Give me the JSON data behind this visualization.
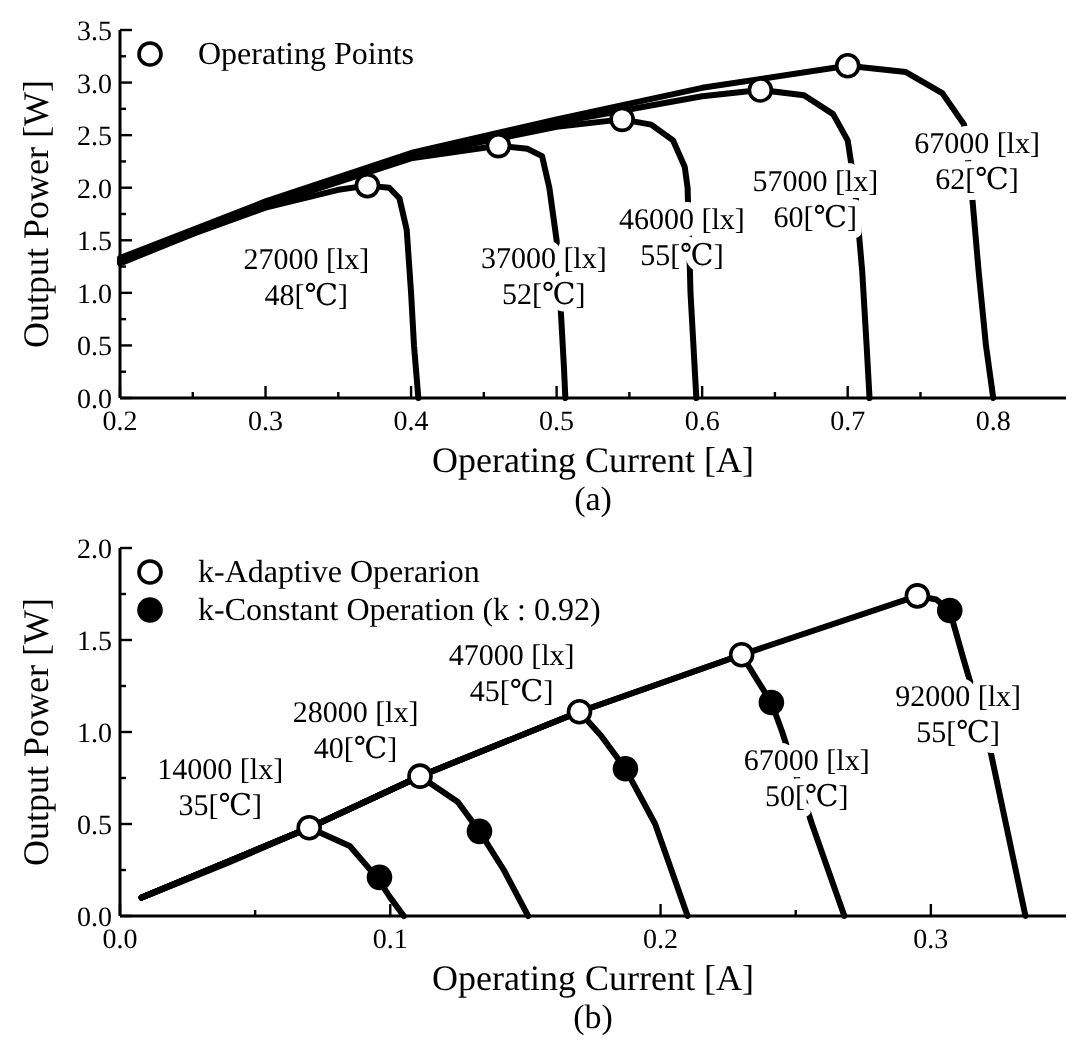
{
  "chart_data": [
    {
      "type": "line",
      "xlabel": "Operating Current [A]",
      "ylabel": "Output Power [W]",
      "xlim": [
        0.2,
        0.85
      ],
      "ylim": [
        0,
        3.5
      ],
      "xticks": [
        {
          "value": 0.2,
          "label": "0.2"
        },
        {
          "value": 0.25,
          "label": null
        },
        {
          "value": 0.3,
          "label": "0.3"
        },
        {
          "value": 0.35,
          "label": null
        },
        {
          "value": 0.4,
          "label": "0.4"
        },
        {
          "value": 0.45,
          "label": null
        },
        {
          "value": 0.5,
          "label": "0.5"
        },
        {
          "value": 0.55,
          "label": null
        },
        {
          "value": 0.6,
          "label": "0.6"
        },
        {
          "value": 0.65,
          "label": null
        },
        {
          "value": 0.7,
          "label": "0.7"
        },
        {
          "value": 0.75,
          "label": null
        },
        {
          "value": 0.8,
          "label": "0.8"
        }
      ],
      "yticks": [
        {
          "value": 0,
          "label": "0.0"
        },
        {
          "value": 0.25,
          "label": null
        },
        {
          "value": 0.5,
          "label": "0.5"
        },
        {
          "value": 0.75,
          "label": null
        },
        {
          "value": 1,
          "label": "1.0"
        },
        {
          "value": 1.25,
          "label": null
        },
        {
          "value": 1.5,
          "label": "1.5"
        },
        {
          "value": 1.75,
          "label": null
        },
        {
          "value": 2,
          "label": "2.0"
        },
        {
          "value": 2.25,
          "label": null
        },
        {
          "value": 2.5,
          "label": "2.5"
        },
        {
          "value": 2.75,
          "label": null
        },
        {
          "value": 3,
          "label": "3.0"
        },
        {
          "value": 3.25,
          "label": null
        },
        {
          "value": 3.5,
          "label": "3.5"
        }
      ],
      "grid": false,
      "legend": "top left",
      "series": [
        {
          "type": "line",
          "color": "#000000",
          "x": [
            0.2,
            0.25,
            0.3,
            0.35,
            0.37,
            0.385,
            0.392,
            0.397,
            0.4,
            0.402,
            0.405
          ],
          "values": [
            1.28,
            1.56,
            1.81,
            1.98,
            2.02,
            2.0,
            1.9,
            1.6,
            1.0,
            0.5,
            0
          ]
        },
        {
          "type": "line",
          "color": "#000000",
          "x": [
            0.2,
            0.3,
            0.4,
            0.46,
            0.48,
            0.49,
            0.495,
            0.5,
            0.503,
            0.505,
            0.506
          ],
          "values": [
            1.3,
            1.83,
            2.28,
            2.4,
            2.37,
            2.3,
            2.0,
            1.5,
            0.8,
            0.3,
            0
          ]
        },
        {
          "type": "line",
          "color": "#000000",
          "x": [
            0.2,
            0.3,
            0.4,
            0.5,
            0.545,
            0.565,
            0.58,
            0.588,
            0.59,
            0.591,
            0.592,
            0.594,
            0.596
          ],
          "values": [
            1.31,
            1.85,
            2.3,
            2.58,
            2.65,
            2.6,
            2.45,
            2.2,
            2.0,
            1.5,
            1.0,
            0.5,
            0
          ]
        },
        {
          "type": "line",
          "color": "#000000",
          "x": [
            0.2,
            0.3,
            0.4,
            0.5,
            0.6,
            0.64,
            0.67,
            0.69,
            0.7,
            0.705,
            0.71,
            0.713,
            0.715
          ],
          "values": [
            1.32,
            1.86,
            2.32,
            2.62,
            2.87,
            2.93,
            2.88,
            2.7,
            2.45,
            2.0,
            1.2,
            0.5,
            0
          ]
        },
        {
          "type": "line",
          "color": "#000000",
          "x": [
            0.2,
            0.3,
            0.4,
            0.5,
            0.6,
            0.7,
            0.74,
            0.765,
            0.78,
            0.785,
            0.79,
            0.795,
            0.8
          ],
          "values": [
            1.33,
            1.87,
            2.33,
            2.65,
            2.95,
            3.16,
            3.1,
            2.9,
            2.6,
            2.0,
            1.2,
            0.5,
            0
          ]
        },
        {
          "type": "scatter",
          "name": "Operating Points",
          "color": "#ffffff",
          "marker": "circle",
          "x": [
            0.37,
            0.46,
            0.545,
            0.64,
            0.7
          ],
          "values": [
            2.02,
            2.4,
            2.65,
            2.93,
            3.16
          ]
        }
      ],
      "annotations": [
        "27000 [lx]\n48[℃]",
        "37000 [lx]\n52[℃]",
        "46000 [lx]\n55[℃]",
        "57000 [lx]\n60[℃]",
        "67000 [lx]\n62[℃]",
        "(a)"
      ]
    },
    {
      "type": "line",
      "xlabel": "Operating Current [A]",
      "ylabel": "Output Power [W]",
      "xlim": [
        0,
        0.35
      ],
      "ylim": [
        0,
        2
      ],
      "xticks": [
        {
          "value": 0,
          "label": "0.0"
        },
        {
          "value": 0.05,
          "label": null
        },
        {
          "value": 0.1,
          "label": "0.1"
        },
        {
          "value": 0.15,
          "label": null
        },
        {
          "value": 0.2,
          "label": "0.2"
        },
        {
          "value": 0.25,
          "label": null
        },
        {
          "value": 0.3,
          "label": "0.3"
        }
      ],
      "yticks": [
        {
          "value": 0,
          "label": "0.0"
        },
        {
          "value": 0.25,
          "label": null
        },
        {
          "value": 0.5,
          "label": "0.5"
        },
        {
          "value": 0.75,
          "label": null
        },
        {
          "value": 1,
          "label": "1.0"
        },
        {
          "value": 1.25,
          "label": null
        },
        {
          "value": 1.5,
          "label": "1.5"
        },
        {
          "value": 1.75,
          "label": null
        },
        {
          "value": 2,
          "label": "2.0"
        }
      ],
      "grid": false,
      "legend": "top left",
      "series": [
        {
          "type": "line",
          "color": "#000000",
          "x": [
            0.008,
            0.04,
            0.07,
            0.085,
            0.095,
            0.1,
            0.105
          ],
          "values": [
            0.1,
            0.29,
            0.48,
            0.38,
            0.21,
            0.1,
            0
          ]
        },
        {
          "type": "line",
          "color": "#000000",
          "x": [
            0.008,
            0.07,
            0.111,
            0.125,
            0.133,
            0.142,
            0.151
          ],
          "values": [
            0.1,
            0.48,
            0.76,
            0.62,
            0.46,
            0.25,
            0
          ]
        },
        {
          "type": "line",
          "color": "#000000",
          "x": [
            0.008,
            0.07,
            0.111,
            0.17,
            0.178,
            0.187,
            0.198,
            0.21
          ],
          "values": [
            0.1,
            0.48,
            0.76,
            1.11,
            0.98,
            0.8,
            0.5,
            0
          ]
        },
        {
          "type": "line",
          "color": "#000000",
          "x": [
            0.008,
            0.07,
            0.111,
            0.17,
            0.23,
            0.235,
            0.241,
            0.245,
            0.256,
            0.268
          ],
          "values": [
            0.1,
            0.48,
            0.76,
            1.11,
            1.42,
            1.3,
            1.16,
            1.0,
            0.5,
            0
          ]
        },
        {
          "type": "line",
          "color": "#000000",
          "x": [
            0.008,
            0.07,
            0.111,
            0.17,
            0.23,
            0.295,
            0.302,
            0.307,
            0.312,
            0.322,
            0.335
          ],
          "values": [
            0.1,
            0.48,
            0.76,
            1.11,
            1.42,
            1.74,
            1.72,
            1.66,
            1.4,
            0.9,
            0
          ]
        },
        {
          "type": "scatter",
          "name": "k-Adaptive Operarion",
          "color": "#ffffff",
          "marker": "circle",
          "x": [
            0.07,
            0.111,
            0.17,
            0.23,
            0.295
          ],
          "values": [
            0.48,
            0.76,
            1.11,
            1.42,
            1.74
          ]
        },
        {
          "type": "scatter",
          "name": "k-Constant Operation  (k : 0.92)",
          "color": "#000000",
          "marker": "circle",
          "x": [
            0.096,
            0.133,
            0.187,
            0.241,
            0.307
          ],
          "values": [
            0.21,
            0.46,
            0.8,
            1.16,
            1.66
          ]
        }
      ],
      "annotations": [
        "14000 [lx]\n35[℃]",
        "28000 [lx]\n40[℃]",
        "47000 [lx]\n45[℃]",
        "67000 [lx]\n50[℃]",
        "92000 [lx]\n55[℃]",
        "(b)"
      ]
    }
  ]
}
